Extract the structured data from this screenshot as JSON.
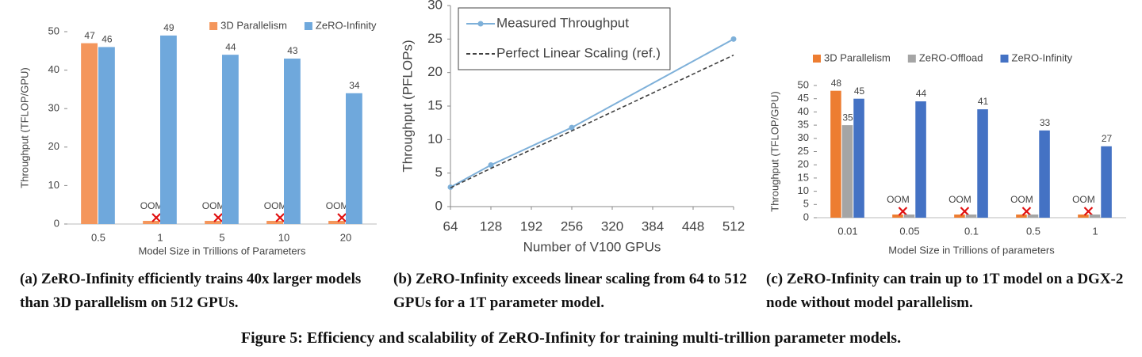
{
  "chart_data": [
    {
      "type": "bar",
      "ylabel": "Throughput (TFLOP/GPU)",
      "xlabel": "Model Size in Trillions of Parameters",
      "categories": [
        "0.5",
        "1",
        "5",
        "10",
        "20"
      ],
      "series": [
        {
          "name": "3D Parallelism",
          "color": "#f4965c",
          "values": [
            47,
            null,
            null,
            null,
            null
          ],
          "value_labels": [
            "47",
            "OOM",
            "OOM",
            "OOM",
            "OOM"
          ]
        },
        {
          "name": "ZeRO-Infinity",
          "color": "#6fa8dc",
          "values": [
            46,
            49,
            44,
            43,
            34
          ]
        }
      ],
      "ylim": [
        0,
        50
      ],
      "yticks": [
        0,
        10,
        20,
        30,
        40,
        50
      ],
      "legend": "upper right",
      "grid": false
    },
    {
      "type": "line",
      "ylabel": "Throughput (PFLOPs)",
      "xlabel": "Number of V100 GPUs",
      "x": [
        64,
        128,
        256,
        512
      ],
      "series": [
        {
          "name": "Measured Throughput",
          "color": "#7eb0d9",
          "values": [
            2.9,
            6.2,
            11.8,
            25
          ],
          "marker": true,
          "line_style": "solid"
        },
        {
          "name": "Perfect Linear Scaling (ref.)",
          "color": "#404040",
          "values": [
            2.8,
            5.7,
            11.3,
            22.6
          ],
          "marker": false,
          "line_style": "dashed"
        }
      ],
      "xlim": [
        64,
        512
      ],
      "xticks": [
        64,
        128,
        192,
        256,
        320,
        384,
        448,
        512
      ],
      "ylim": [
        0,
        30
      ],
      "yticks": [
        0,
        5,
        10,
        15,
        20,
        25,
        30
      ],
      "legend": "upper left",
      "grid": false
    },
    {
      "type": "bar",
      "ylabel": "Throughput (TFLOP/GPU)",
      "xlabel": "Model Size in Trillions of parameters",
      "categories": [
        "0.01",
        "0.05",
        "0.1",
        "0.5",
        "1"
      ],
      "series": [
        {
          "name": "3D Parallelism",
          "color": "#ed7d31",
          "values": [
            48,
            null,
            null,
            null,
            null
          ],
          "value_labels": [
            "48",
            "OOM",
            "OOM",
            "OOM",
            "OOM"
          ]
        },
        {
          "name": "ZeRO-Offload",
          "color": "#a5a5a5",
          "values": [
            35,
            null,
            null,
            null,
            null
          ]
        },
        {
          "name": "ZeRO-Infinity",
          "color": "#4472c4",
          "values": [
            45,
            44,
            41,
            33,
            27
          ]
        }
      ],
      "ylim": [
        0,
        50
      ],
      "yticks": [
        0,
        5,
        10,
        15,
        20,
        25,
        30,
        35,
        40,
        45,
        50
      ],
      "legend": "upper left",
      "grid": false
    }
  ],
  "captions": [
    "(a) ZeRO-Infinity efficiently trains 40x larger models than 3D parallelism on 512 GPUs.",
    "(b) ZeRO-Infinity exceeds linear scaling from 64 to 512 GPUs for a 1T parameter model.",
    "(c) ZeRO-Infinity can train up to 1T model on a DGX-2 node without model parallelism."
  ],
  "figure_caption": "Figure 5: Efficiency and scalability of ZeRO-Infinity for training multi-trillion parameter models."
}
